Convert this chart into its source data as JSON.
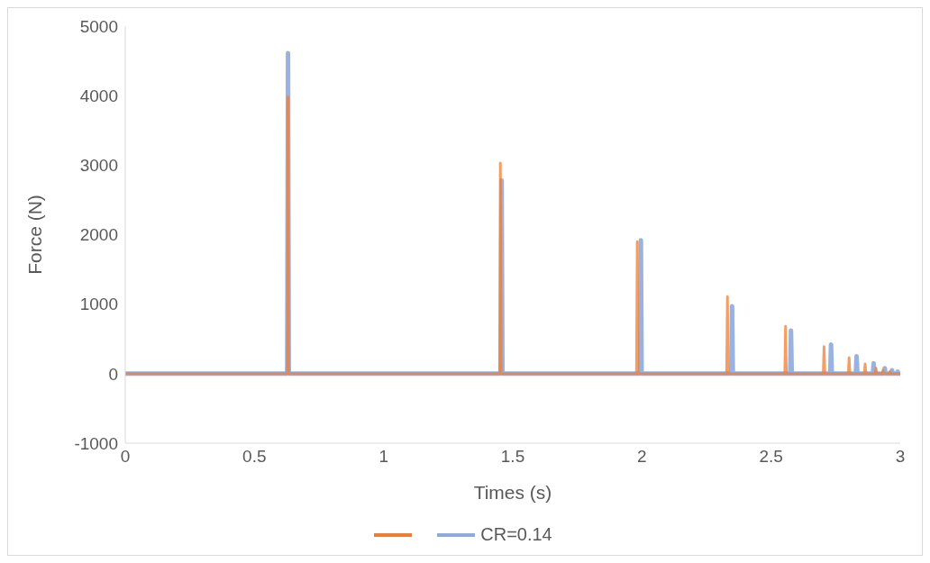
{
  "chart_data": {
    "type": "line",
    "xlabel": "Times (s)",
    "ylabel": "Force (N)",
    "xlim": [
      0,
      3
    ],
    "xticks": [
      0,
      0.5,
      1,
      1.5,
      2,
      2.5,
      3
    ],
    "ylim": [
      -1000,
      5000
    ],
    "yticks": [
      -1000,
      0,
      1000,
      2000,
      3000,
      4000,
      5000
    ],
    "grid": false,
    "legend": "bottom",
    "marker": "none",
    "line_style": "solid",
    "series": [
      {
        "color": "#ed7d31",
        "x": [
          0,
          0.627,
          0.63,
          0.633,
          1.449,
          1.452,
          1.455,
          1.979,
          1.982,
          1.985,
          2.328,
          2.331,
          2.334,
          2.553,
          2.556,
          2.559,
          2.702,
          2.705,
          2.708,
          2.799,
          2.802,
          2.805,
          2.861,
          2.864,
          2.867,
          2.903,
          2.906,
          2.909,
          2.93,
          2.933,
          2.936,
          2.957,
          2.96,
          2.963,
          3
        ],
        "values": [
          0,
          0,
          3980,
          0,
          0,
          3030,
          0,
          0,
          1900,
          0,
          0,
          1110,
          0,
          0,
          680,
          0,
          0,
          390,
          0,
          0,
          230,
          0,
          0,
          140,
          0,
          0,
          80,
          0,
          0,
          50,
          0,
          0,
          30,
          0,
          0
        ]
      },
      {
        "name": "CR=0.14",
        "color": "#8faadc",
        "x": [
          0,
          0.627,
          0.63,
          0.633,
          1.454,
          1.457,
          1.46,
          1.993,
          1.996,
          1.999,
          2.346,
          2.349,
          2.352,
          2.574,
          2.577,
          2.58,
          2.729,
          2.732,
          2.735,
          2.828,
          2.831,
          2.834,
          2.894,
          2.897,
          2.9,
          2.937,
          2.94,
          2.943,
          2.965,
          2.968,
          2.971,
          2.987,
          2.99,
          2.993,
          3
        ],
        "values": [
          0,
          0,
          4610,
          0,
          0,
          2780,
          0,
          0,
          1920,
          0,
          0,
          970,
          0,
          0,
          620,
          0,
          0,
          420,
          0,
          0,
          250,
          0,
          0,
          150,
          0,
          0,
          80,
          0,
          0,
          50,
          0,
          0,
          30,
          0,
          0
        ]
      }
    ]
  }
}
